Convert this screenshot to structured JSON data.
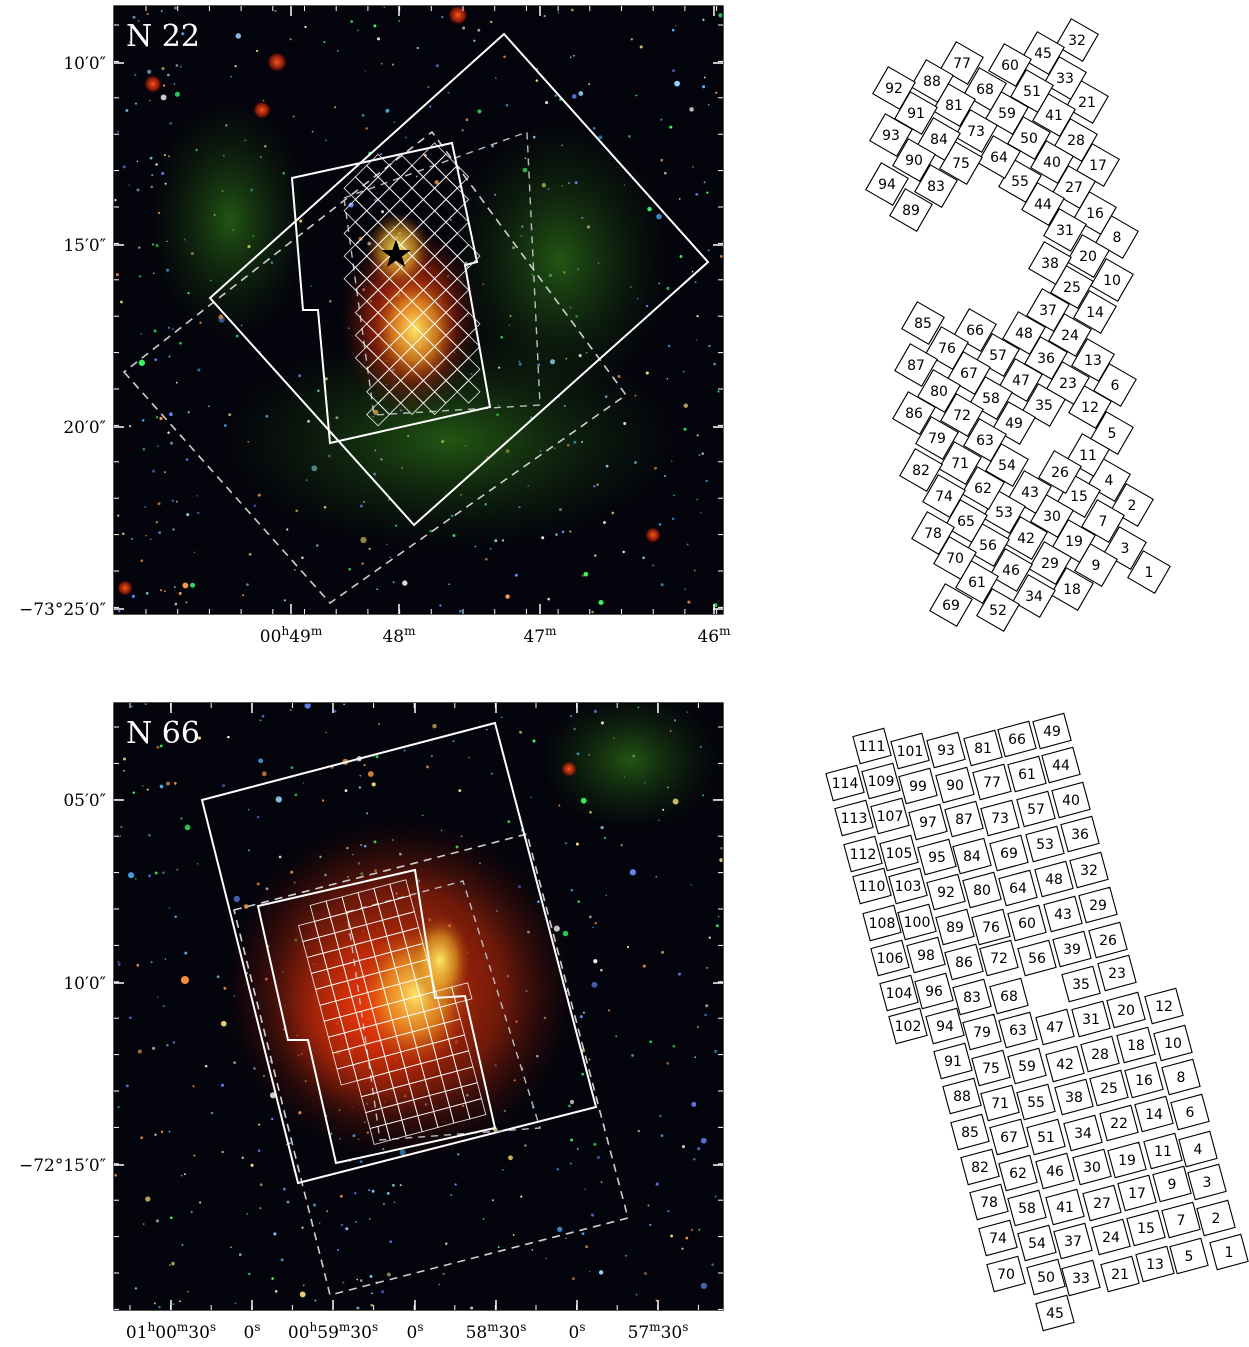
{
  "panels": [
    {
      "id": "n22",
      "label": "N 22",
      "dec_ticks": [
        {
          "label": "10′0″"
        },
        {
          "label": "15′0″"
        },
        {
          "label": "20′0″"
        },
        {
          "label": "−73°25′0″"
        }
      ],
      "ra_ticks": [
        {
          "label": "00h49m"
        },
        {
          "label": "48m"
        },
        {
          "label": "47m"
        },
        {
          "label": "46m"
        }
      ],
      "tile_numbers": [
        1,
        2,
        3,
        4,
        5,
        6,
        7,
        8,
        9,
        10,
        11,
        12,
        13,
        14,
        15,
        16,
        17,
        18,
        19,
        20,
        21,
        23,
        24,
        25,
        26,
        27,
        28,
        29,
        30,
        31,
        32,
        33,
        34,
        35,
        36,
        37,
        38,
        40,
        41,
        42,
        43,
        44,
        45,
        46,
        47,
        48,
        49,
        50,
        51,
        52,
        53,
        54,
        55,
        56,
        57,
        58,
        59,
        60,
        61,
        62,
        63,
        64,
        65,
        66,
        67,
        68,
        69,
        70,
        71,
        72,
        73,
        74,
        75,
        76,
        77,
        78,
        79,
        80,
        81,
        82,
        83,
        84,
        85,
        86,
        87,
        88,
        89,
        90,
        91,
        92,
        93,
        94
      ]
    },
    {
      "id": "n66",
      "label": "N 66",
      "dec_ticks": [
        {
          "label": "05′0″"
        },
        {
          "label": "10′0″"
        },
        {
          "label": "−72°15′0″"
        }
      ],
      "ra_ticks": [
        {
          "label": "01h00m30s"
        },
        {
          "label": "0s"
        },
        {
          "label": "00h59m30s"
        },
        {
          "label": "0s"
        },
        {
          "label": "58m30s"
        },
        {
          "label": "0s"
        },
        {
          "label": "57m30s"
        }
      ],
      "tile_numbers": [
        1,
        2,
        3,
        4,
        5,
        6,
        7,
        8,
        9,
        10,
        11,
        12,
        13,
        14,
        15,
        16,
        17,
        18,
        19,
        20,
        21,
        22,
        23,
        24,
        25,
        26,
        27,
        28,
        29,
        30,
        31,
        32,
        33,
        34,
        35,
        36,
        37,
        38,
        39,
        40,
        41,
        42,
        43,
        44,
        45,
        46,
        47,
        48,
        49,
        50,
        51,
        53,
        54,
        55,
        56,
        57,
        58,
        59,
        60,
        61,
        62,
        63,
        64,
        66,
        67,
        68,
        69,
        70,
        71,
        72,
        73,
        74,
        75,
        76,
        77,
        78,
        79,
        80,
        81,
        82,
        83,
        84,
        85,
        86,
        87,
        88,
        89,
        90,
        91,
        92,
        93,
        94,
        95,
        96,
        97,
        98,
        99,
        100,
        101,
        102,
        103,
        104,
        105,
        106,
        107,
        108,
        109,
        110,
        111,
        112,
        113,
        114
      ]
    }
  ],
  "colors": {
    "sky": "#04040c",
    "overlay": "#ffffff",
    "dust_red": "#d83a10",
    "dust_green": "#2e8a14",
    "hot_yellow": "#ffd84a",
    "star_blue": "#4fc8ff"
  }
}
